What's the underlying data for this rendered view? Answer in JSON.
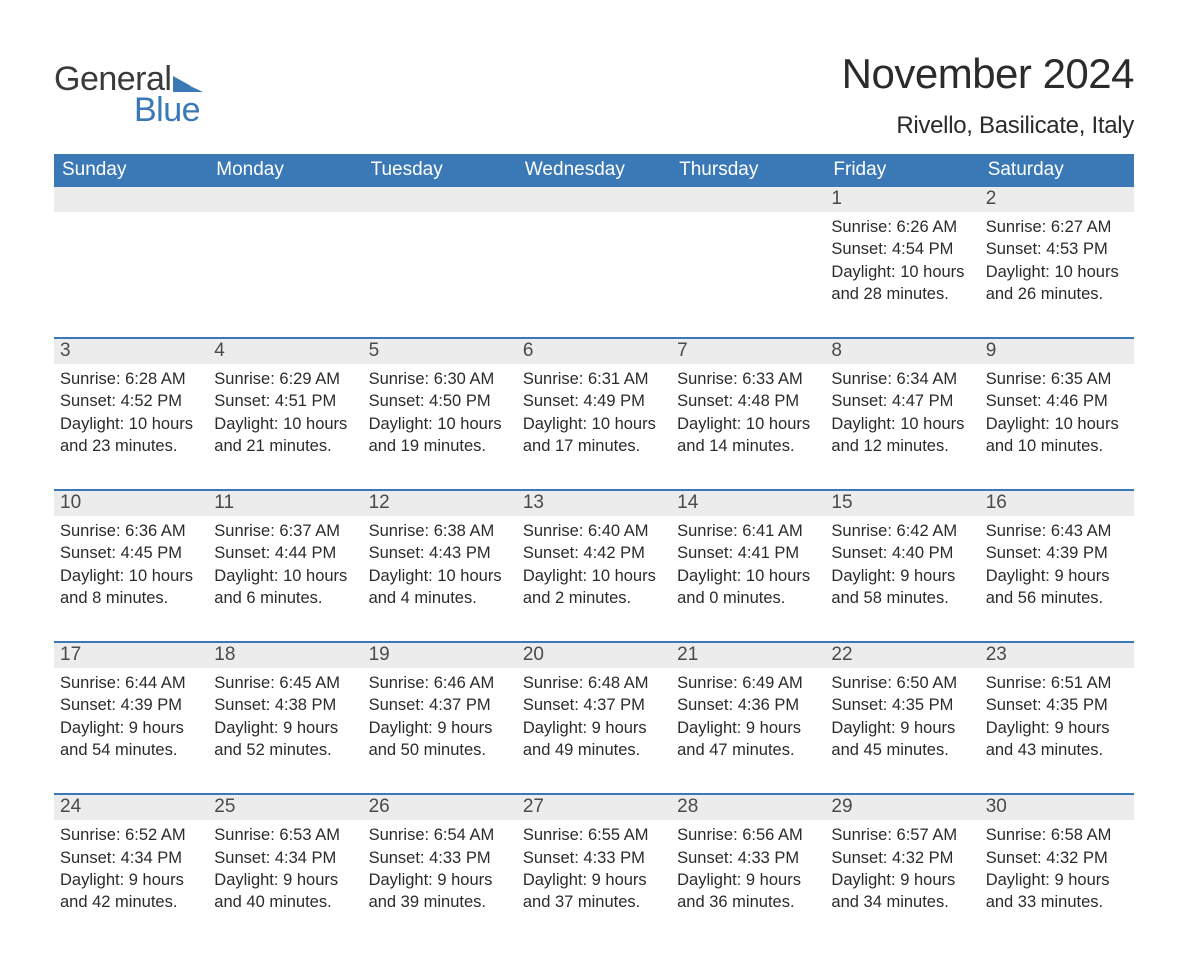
{
  "logo": {
    "word1": "General",
    "word2": "Blue",
    "color_dark": "#3a3a3a",
    "color_blue": "#3a78b6"
  },
  "header": {
    "month_title": "November 2024",
    "location": "Rivello, Basilicate, Italy"
  },
  "colors": {
    "header_bg": "#3a78b6",
    "header_text": "#ffffff",
    "daynum_bg": "#ececec",
    "text": "#2b2b2b",
    "row_border": "#3a78b6"
  },
  "typography": {
    "title_fontsize": 42,
    "location_fontsize": 24,
    "dow_fontsize": 19,
    "daynum_fontsize": 19,
    "body_fontsize": 16.5
  },
  "days_of_week": [
    "Sunday",
    "Monday",
    "Tuesday",
    "Wednesday",
    "Thursday",
    "Friday",
    "Saturday"
  ],
  "labels": {
    "sunrise": "Sunrise:",
    "sunset": "Sunset:",
    "daylight": "Daylight:"
  },
  "weeks": [
    [
      null,
      null,
      null,
      null,
      null,
      {
        "num": "1",
        "sunrise": "6:26 AM",
        "sunset": "4:54 PM",
        "daylight": "10 hours and 28 minutes."
      },
      {
        "num": "2",
        "sunrise": "6:27 AM",
        "sunset": "4:53 PM",
        "daylight": "10 hours and 26 minutes."
      }
    ],
    [
      {
        "num": "3",
        "sunrise": "6:28 AM",
        "sunset": "4:52 PM",
        "daylight": "10 hours and 23 minutes."
      },
      {
        "num": "4",
        "sunrise": "6:29 AM",
        "sunset": "4:51 PM",
        "daylight": "10 hours and 21 minutes."
      },
      {
        "num": "5",
        "sunrise": "6:30 AM",
        "sunset": "4:50 PM",
        "daylight": "10 hours and 19 minutes."
      },
      {
        "num": "6",
        "sunrise": "6:31 AM",
        "sunset": "4:49 PM",
        "daylight": "10 hours and 17 minutes."
      },
      {
        "num": "7",
        "sunrise": "6:33 AM",
        "sunset": "4:48 PM",
        "daylight": "10 hours and 14 minutes."
      },
      {
        "num": "8",
        "sunrise": "6:34 AM",
        "sunset": "4:47 PM",
        "daylight": "10 hours and 12 minutes."
      },
      {
        "num": "9",
        "sunrise": "6:35 AM",
        "sunset": "4:46 PM",
        "daylight": "10 hours and 10 minutes."
      }
    ],
    [
      {
        "num": "10",
        "sunrise": "6:36 AM",
        "sunset": "4:45 PM",
        "daylight": "10 hours and 8 minutes."
      },
      {
        "num": "11",
        "sunrise": "6:37 AM",
        "sunset": "4:44 PM",
        "daylight": "10 hours and 6 minutes."
      },
      {
        "num": "12",
        "sunrise": "6:38 AM",
        "sunset": "4:43 PM",
        "daylight": "10 hours and 4 minutes."
      },
      {
        "num": "13",
        "sunrise": "6:40 AM",
        "sunset": "4:42 PM",
        "daylight": "10 hours and 2 minutes."
      },
      {
        "num": "14",
        "sunrise": "6:41 AM",
        "sunset": "4:41 PM",
        "daylight": "10 hours and 0 minutes."
      },
      {
        "num": "15",
        "sunrise": "6:42 AM",
        "sunset": "4:40 PM",
        "daylight": "9 hours and 58 minutes."
      },
      {
        "num": "16",
        "sunrise": "6:43 AM",
        "sunset": "4:39 PM",
        "daylight": "9 hours and 56 minutes."
      }
    ],
    [
      {
        "num": "17",
        "sunrise": "6:44 AM",
        "sunset": "4:39 PM",
        "daylight": "9 hours and 54 minutes."
      },
      {
        "num": "18",
        "sunrise": "6:45 AM",
        "sunset": "4:38 PM",
        "daylight": "9 hours and 52 minutes."
      },
      {
        "num": "19",
        "sunrise": "6:46 AM",
        "sunset": "4:37 PM",
        "daylight": "9 hours and 50 minutes."
      },
      {
        "num": "20",
        "sunrise": "6:48 AM",
        "sunset": "4:37 PM",
        "daylight": "9 hours and 49 minutes."
      },
      {
        "num": "21",
        "sunrise": "6:49 AM",
        "sunset": "4:36 PM",
        "daylight": "9 hours and 47 minutes."
      },
      {
        "num": "22",
        "sunrise": "6:50 AM",
        "sunset": "4:35 PM",
        "daylight": "9 hours and 45 minutes."
      },
      {
        "num": "23",
        "sunrise": "6:51 AM",
        "sunset": "4:35 PM",
        "daylight": "9 hours and 43 minutes."
      }
    ],
    [
      {
        "num": "24",
        "sunrise": "6:52 AM",
        "sunset": "4:34 PM",
        "daylight": "9 hours and 42 minutes."
      },
      {
        "num": "25",
        "sunrise": "6:53 AM",
        "sunset": "4:34 PM",
        "daylight": "9 hours and 40 minutes."
      },
      {
        "num": "26",
        "sunrise": "6:54 AM",
        "sunset": "4:33 PM",
        "daylight": "9 hours and 39 minutes."
      },
      {
        "num": "27",
        "sunrise": "6:55 AM",
        "sunset": "4:33 PM",
        "daylight": "9 hours and 37 minutes."
      },
      {
        "num": "28",
        "sunrise": "6:56 AM",
        "sunset": "4:33 PM",
        "daylight": "9 hours and 36 minutes."
      },
      {
        "num": "29",
        "sunrise": "6:57 AM",
        "sunset": "4:32 PM",
        "daylight": "9 hours and 34 minutes."
      },
      {
        "num": "30",
        "sunrise": "6:58 AM",
        "sunset": "4:32 PM",
        "daylight": "9 hours and 33 minutes."
      }
    ]
  ]
}
